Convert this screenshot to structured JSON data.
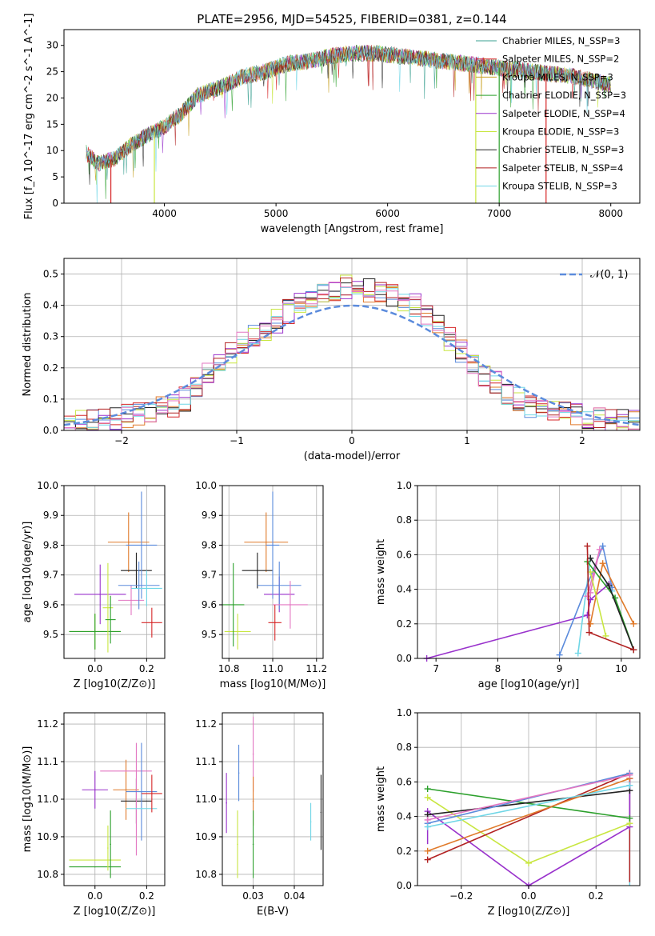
{
  "figure": {
    "title": "PLATE=2956, MJD=54525, FIBERID=0381, z=0.144"
  },
  "chart_data": [
    {
      "id": "spectrum",
      "type": "line",
      "xlabel": "wavelength [Angstrom, rest frame]",
      "ylabel": "Flux [f_λ 10^-17 erg cm^-2 s^-1 A^-1]",
      "xlim": [
        3100,
        8260
      ],
      "ylim": [
        0,
        33
      ],
      "xticks": [
        4000,
        5000,
        6000,
        7000,
        8000
      ],
      "yticks": [
        0,
        5,
        10,
        15,
        20,
        25,
        30
      ],
      "grid": false,
      "legend_placement": "top-right",
      "legend": [
        {
          "text": "Chabrier MILES, N_SSP=3",
          "color": "#3aa090"
        },
        {
          "text": "Salpeter MILES, N_SSP=2",
          "color": "#d62728"
        },
        {
          "text": "Kroupa MILES, N_SSP=3",
          "color": "#c8a020"
        },
        {
          "text": "Chabrier ELODIE, N_SSP=3",
          "color": "#2ca02c"
        },
        {
          "text": "Salpeter ELODIE, N_SSP=4",
          "color": "#9932cc"
        },
        {
          "text": "Kroupa ELODIE, N_SSP=3",
          "color": "#c8e640"
        },
        {
          "text": "Chabrier STELIB, N_SSP=3",
          "color": "#222222"
        },
        {
          "text": "Salpeter STELIB, N_SSP=4",
          "color": "#b22222"
        },
        {
          "text": "Kroupa STELIB, N_SSP=3",
          "color": "#6fd6e6"
        }
      ],
      "continuum": {
        "x": [
          3300,
          3400,
          3550,
          3700,
          3850,
          4000,
          4150,
          4300,
          4500,
          4700,
          4900,
          5100,
          5300,
          5500,
          5700,
          5900,
          6100,
          6300,
          6500,
          6700,
          6900,
          7100,
          7300,
          7500,
          7700,
          7900,
          8000
        ],
        "y": [
          9.5,
          7.5,
          8.5,
          11,
          13,
          14.5,
          17,
          20.5,
          22,
          24,
          25,
          26.5,
          27,
          28,
          28.5,
          28.5,
          28,
          27.5,
          27,
          26.5,
          26,
          25.5,
          25,
          24.5,
          24,
          23,
          22.5
        ]
      },
      "dropouts": [
        {
          "x": 3520,
          "y": 0,
          "color": "#d62728"
        },
        {
          "x": 3910,
          "y": 0,
          "color": "#c8e640"
        },
        {
          "x": 6790,
          "y": 0,
          "color": "#c8e640"
        },
        {
          "x": 7000,
          "y": 0,
          "color": "#2ca02c"
        },
        {
          "x": 7420,
          "y": 0,
          "color": "#d62728"
        }
      ]
    },
    {
      "id": "residuals",
      "type": "histogram",
      "xlabel": "(data-model)/error",
      "ylabel": "Normed distribution",
      "xlim": [
        -2.5,
        2.5
      ],
      "ylim": [
        0,
        0.55
      ],
      "xticks": [
        -2,
        -1,
        0,
        1,
        2
      ],
      "xtick_labels": [
        "−2",
        "−1",
        "0",
        "1",
        "2"
      ],
      "yticks": [
        0,
        0.1,
        0.2,
        0.3,
        0.4,
        0.5
      ],
      "ytick_labels": [
        "0.0",
        "0.1",
        "0.2",
        "0.3",
        "0.4",
        "0.5"
      ],
      "grid": true,
      "legend_placement": "top-right",
      "legend": [
        {
          "text": "𝒩(0, 1)",
          "color": "#5b8bdc",
          "style": "dashed"
        }
      ],
      "bin_width": 0.1,
      "bins_start": -2.5,
      "base": [
        0.02,
        0.025,
        0.03,
        0.035,
        0.04,
        0.045,
        0.05,
        0.06,
        0.07,
        0.08,
        0.1,
        0.14,
        0.18,
        0.22,
        0.25,
        0.28,
        0.3,
        0.32,
        0.35,
        0.38,
        0.4,
        0.42,
        0.44,
        0.45,
        0.46,
        0.46,
        0.45,
        0.44,
        0.43,
        0.42,
        0.4,
        0.37,
        0.33,
        0.29,
        0.25,
        0.21,
        0.18,
        0.15,
        0.12,
        0.1,
        0.08,
        0.07,
        0.06,
        0.055,
        0.05,
        0.04,
        0.035,
        0.03,
        0.03,
        0.03
      ],
      "series_colors": [
        "#5b8bdc",
        "#d62728",
        "#e07a2a",
        "#9932cc",
        "#c8e640",
        "#222222",
        "#b22222",
        "#6fd6e6",
        "#e377c2"
      ]
    },
    {
      "id": "age_vs_Z",
      "type": "errorbar",
      "xlabel": "Z [log10(Z/Z⊙)]",
      "ylabel": "age  [log10(age/yr)]",
      "xlim": [
        -0.12,
        0.27
      ],
      "ylim": [
        9.42,
        10.0
      ],
      "xticks": [
        0.0,
        0.2
      ],
      "xtick_labels": [
        "0.0",
        "0.2"
      ],
      "yticks": [
        9.5,
        9.6,
        9.7,
        9.8,
        9.9,
        10.0
      ],
      "ytick_labels": [
        "9.5",
        "9.6",
        "9.7",
        "9.8",
        "9.9",
        "10.0"
      ],
      "grid": true,
      "points": [
        {
          "x": 0.0,
          "xerr": 0.1,
          "y": 9.51,
          "yerr": 0.06,
          "color": "#c8e640"
        },
        {
          "x": 0.0,
          "xerr": 0.1,
          "y": 9.51,
          "yerr": 0.06,
          "color": "#2ca02c"
        },
        {
          "x": 0.02,
          "xerr": 0.1,
          "y": 9.635,
          "yerr": 0.1,
          "color": "#9932cc"
        },
        {
          "x": 0.05,
          "xerr": 0.02,
          "y": 9.59,
          "yerr": 0.15,
          "color": "#c8e640"
        },
        {
          "x": 0.06,
          "xerr": 0.02,
          "y": 9.55,
          "yerr": 0.08,
          "color": "#2ca02c"
        },
        {
          "x": 0.13,
          "xerr": 0.08,
          "y": 9.81,
          "yerr": 0.1,
          "color": "#e07a2a"
        },
        {
          "x": 0.14,
          "xerr": 0.05,
          "y": 9.615,
          "yerr": 0.05,
          "color": "#e377c2"
        },
        {
          "x": 0.16,
          "xerr": 0.06,
          "y": 9.715,
          "yerr": 0.06,
          "color": "#222222"
        },
        {
          "x": 0.17,
          "xerr": 0.08,
          "y": 9.665,
          "yerr": 0.08,
          "color": "#5b8bdc"
        },
        {
          "x": 0.18,
          "xerr": 0.06,
          "y": 9.8,
          "yerr": 0.18,
          "color": "#5b8bdc"
        },
        {
          "x": 0.2,
          "xerr": 0.06,
          "y": 9.655,
          "yerr": 0.06,
          "color": "#6fd6e6"
        },
        {
          "x": 0.22,
          "xerr": 0.04,
          "y": 9.54,
          "yerr": 0.05,
          "color": "#d62728"
        }
      ]
    },
    {
      "id": "age_vs_mass",
      "type": "errorbar",
      "xlabel": "mass [log10(M/M⊙)]",
      "ylabel": "",
      "xlim": [
        10.77,
        11.23
      ],
      "ylim": [
        9.42,
        10.0
      ],
      "xticks": [
        10.8,
        11.0,
        11.2
      ],
      "xtick_labels": [
        "10.8",
        "11.0",
        "11.2"
      ],
      "yticks": [
        9.5,
        9.6,
        9.7,
        9.8,
        9.9,
        10.0
      ],
      "ytick_labels": [
        "9.5",
        "9.6",
        "9.7",
        "9.8",
        "9.9",
        "10.0"
      ],
      "grid": true,
      "points": [
        {
          "x": 10.84,
          "xerr": 0.06,
          "y": 9.51,
          "yerr": 0.06,
          "color": "#c8e640"
        },
        {
          "x": 10.82,
          "xerr": 0.05,
          "y": 9.6,
          "yerr": 0.14,
          "color": "#2ca02c"
        },
        {
          "x": 10.97,
          "xerr": 0.1,
          "y": 9.81,
          "yerr": 0.1,
          "color": "#e07a2a"
        },
        {
          "x": 10.93,
          "xerr": 0.07,
          "y": 9.715,
          "yerr": 0.06,
          "color": "#222222"
        },
        {
          "x": 11.03,
          "xerr": 0.07,
          "y": 9.635,
          "yerr": 0.06,
          "color": "#9932cc"
        },
        {
          "x": 11.03,
          "xerr": 0.1,
          "y": 9.665,
          "yerr": 0.08,
          "color": "#5b8bdc"
        },
        {
          "x": 11.0,
          "xerr": 0.03,
          "y": 9.8,
          "yerr": 0.18,
          "color": "#5b8bdc"
        },
        {
          "x": 11.08,
          "xerr": 0.08,
          "y": 9.6,
          "yerr": 0.08,
          "color": "#e377c2"
        },
        {
          "x": 11.01,
          "xerr": 0.03,
          "y": 9.54,
          "yerr": 0.06,
          "color": "#d62728"
        }
      ]
    },
    {
      "id": "weights_vs_age",
      "type": "line",
      "xlabel": "age  [log10(age/yr)]",
      "ylabel": "mass weight",
      "xlim": [
        6.7,
        10.3
      ],
      "ylim": [
        0,
        1
      ],
      "xticks": [
        7,
        8,
        9,
        10
      ],
      "xtick_labels": [
        "7",
        "8",
        "9",
        "10"
      ],
      "yticks": [
        0,
        0.2,
        0.4,
        0.6,
        0.8,
        1.0
      ],
      "ytick_labels": [
        "0.0",
        "0.2",
        "0.4",
        "0.6",
        "0.8",
        "1.0"
      ],
      "grid": true,
      "series": [
        {
          "color": "#9932cc",
          "x": [
            6.85,
            9.45,
            9.5,
            9.8
          ],
          "y": [
            0.0,
            0.25,
            0.34,
            0.43
          ]
        },
        {
          "color": "#6fd6e6",
          "x": [
            9.3,
            9.5,
            9.85
          ],
          "y": [
            0.03,
            0.58,
            0.39
          ]
        },
        {
          "color": "#5b8bdc",
          "x": [
            9.0,
            9.7,
            9.85
          ],
          "y": [
            0.02,
            0.65,
            0.41
          ]
        },
        {
          "color": "#e377c2",
          "x": [
            9.45,
            9.65,
            9.5
          ],
          "y": [
            0.36,
            0.63,
            0.38
          ]
        },
        {
          "color": "#e07a2a",
          "x": [
            9.5,
            9.7,
            10.2
          ],
          "y": [
            0.2,
            0.55,
            0.2
          ]
        },
        {
          "color": "#c8e640",
          "x": [
            9.5,
            9.75
          ],
          "y": [
            0.5,
            0.13
          ]
        },
        {
          "color": "#2ca02c",
          "x": [
            9.45,
            9.9,
            10.2
          ],
          "y": [
            0.56,
            0.35,
            0.05
          ]
        },
        {
          "color": "#222222",
          "x": [
            9.5,
            9.8,
            10.2
          ],
          "y": [
            0.58,
            0.42,
            0.05
          ]
        },
        {
          "color": "#b22222",
          "x": [
            9.45,
            9.48,
            10.2
          ],
          "y": [
            0.65,
            0.15,
            0.05
          ]
        }
      ]
    },
    {
      "id": "mass_vs_Z",
      "type": "errorbar",
      "xlabel": "Z [log10(Z/Z⊙)]",
      "ylabel": "mass [log10(M/M⊙)]",
      "xlim": [
        -0.12,
        0.27
      ],
      "ylim": [
        10.77,
        11.23
      ],
      "xticks": [
        0.0,
        0.2
      ],
      "xtick_labels": [
        "0.0",
        "0.2"
      ],
      "yticks": [
        10.8,
        10.9,
        11.0,
        11.1,
        11.2
      ],
      "ytick_labels": [
        "10.8",
        "10.9",
        "11.0",
        "11.1",
        "11.2"
      ],
      "grid": true,
      "points": [
        {
          "x": 0.0,
          "xerr": 0.1,
          "y": 10.838,
          "yerr": 0.0,
          "color": "#c8e640"
        },
        {
          "x": 0.0,
          "xerr": 0.1,
          "y": 10.82,
          "yerr": 0.0,
          "color": "#2ca02c"
        },
        {
          "x": 0.0,
          "xerr": 0.05,
          "y": 11.025,
          "yerr": 0.05,
          "color": "#9932cc"
        },
        {
          "x": 0.05,
          "xerr": 0.0,
          "y": 10.87,
          "yerr": 0.06,
          "color": "#c8e640"
        },
        {
          "x": 0.06,
          "xerr": 0.0,
          "y": 10.88,
          "yerr": 0.09,
          "color": "#2ca02c"
        },
        {
          "x": 0.12,
          "xerr": 0.05,
          "y": 11.025,
          "yerr": 0.08,
          "color": "#e07a2a"
        },
        {
          "x": 0.12,
          "xerr": 0.1,
          "y": 11.075,
          "yerr": 0.0,
          "color": "#e377c2"
        },
        {
          "x": 0.16,
          "xerr": 0.06,
          "y": 10.995,
          "yerr": 0.06,
          "color": "#222222"
        },
        {
          "x": 0.16,
          "xerr": 0.0,
          "y": 11.0,
          "yerr": 0.15,
          "color": "#e377c2"
        },
        {
          "x": 0.18,
          "xerr": 0.06,
          "y": 11.02,
          "yerr": 0.13,
          "color": "#5b8bdc"
        },
        {
          "x": 0.18,
          "xerr": 0.06,
          "y": 10.975,
          "yerr": 0.0,
          "color": "#6fd6e6"
        },
        {
          "x": 0.22,
          "xerr": 0.04,
          "y": 11.015,
          "yerr": 0.05,
          "color": "#d62728"
        }
      ]
    },
    {
      "id": "mass_vs_ebv",
      "type": "errorbar",
      "xlabel": "E(B-V)",
      "ylabel": "",
      "xlim": [
        0.0225,
        0.047
      ],
      "ylim": [
        10.77,
        11.23
      ],
      "xticks": [
        0.03,
        0.04
      ],
      "xtick_labels": [
        "0.03",
        "0.04"
      ],
      "yticks": [
        10.8,
        10.9,
        11.0,
        11.1,
        11.2
      ],
      "ytick_labels": [
        "10.8",
        "10.9",
        "11.0",
        "11.1",
        "11.2"
      ],
      "grid": true,
      "points": [
        {
          "x": 0.0235,
          "xerr": 0.0,
          "y": 10.99,
          "yerr": 0.08,
          "color": "#9932cc"
        },
        {
          "x": 0.0262,
          "xerr": 0.0,
          "y": 10.88,
          "yerr": 0.09,
          "color": "#c8e640"
        },
        {
          "x": 0.0265,
          "xerr": 0.0,
          "y": 11.07,
          "yerr": 0.075,
          "color": "#5b8bdc"
        },
        {
          "x": 0.03,
          "xerr": 0.0,
          "y": 11.12,
          "yerr": 0.1,
          "color": "#e377c2"
        },
        {
          "x": 0.03,
          "xerr": 0.0,
          "y": 10.995,
          "yerr": 0.065,
          "color": "#e07a2a"
        },
        {
          "x": 0.03,
          "xerr": 0.0,
          "y": 10.88,
          "yerr": 0.09,
          "color": "#2ca02c"
        },
        {
          "x": 0.044,
          "xerr": 0.0,
          "y": 10.94,
          "yerr": 0.05,
          "color": "#6fd6e6"
        },
        {
          "x": 0.0465,
          "xerr": 0.0,
          "y": 10.965,
          "yerr": 0.1,
          "color": "#222222"
        }
      ]
    },
    {
      "id": "weights_vs_Z",
      "type": "line",
      "xlabel": "Z [log10(Z/Z⊙)]",
      "ylabel": "mass weight",
      "xlim": [
        -0.33,
        0.33
      ],
      "ylim": [
        0,
        1
      ],
      "xticks": [
        -0.2,
        0.0,
        0.2
      ],
      "xtick_labels": [
        "−0.2",
        "0.0",
        "0.2"
      ],
      "yticks": [
        0,
        0.2,
        0.4,
        0.6,
        0.8,
        1.0
      ],
      "ytick_labels": [
        "0.0",
        "0.2",
        "0.4",
        "0.6",
        "0.8",
        "1.0"
      ],
      "grid": true,
      "series": [
        {
          "color": "#9932cc",
          "x": [
            -0.3,
            0.0,
            0.3,
            0.3
          ],
          "y": [
            0.43,
            0.0,
            0.34,
            0.62
          ]
        },
        {
          "color": "#c8e640",
          "x": [
            -0.3,
            0.0,
            0.3
          ],
          "y": [
            0.51,
            0.13,
            0.36
          ]
        },
        {
          "color": "#2ca02c",
          "x": [
            -0.3,
            0.3
          ],
          "y": [
            0.56,
            0.39
          ]
        },
        {
          "color": "#222222",
          "x": [
            -0.3,
            0.3
          ],
          "y": [
            0.41,
            0.55
          ]
        },
        {
          "color": "#b22222",
          "x": [
            -0.3,
            0.3
          ],
          "y": [
            0.15,
            0.65
          ]
        },
        {
          "color": "#e07a2a",
          "x": [
            -0.3,
            0.3
          ],
          "y": [
            0.2,
            0.62
          ]
        },
        {
          "color": "#5b8bdc",
          "x": [
            -0.3,
            0.3
          ],
          "y": [
            0.36,
            0.65
          ]
        },
        {
          "color": "#e377c2",
          "x": [
            -0.3,
            0.3
          ],
          "y": [
            0.38,
            0.64
          ]
        },
        {
          "color": "#6fd6e6",
          "x": [
            -0.3,
            0.3
          ],
          "y": [
            0.34,
            0.58
          ]
        }
      ],
      "verticals": [
        {
          "x": 0.3,
          "y0": 0.0,
          "y1": 0.65,
          "color": "#6fd6e6"
        },
        {
          "x": 0.3,
          "y0": 0.02,
          "y1": 0.62,
          "color": "#b22222"
        },
        {
          "x": -0.3,
          "y0": 0.24,
          "y1": 0.43,
          "color": "#9932cc"
        }
      ]
    }
  ]
}
